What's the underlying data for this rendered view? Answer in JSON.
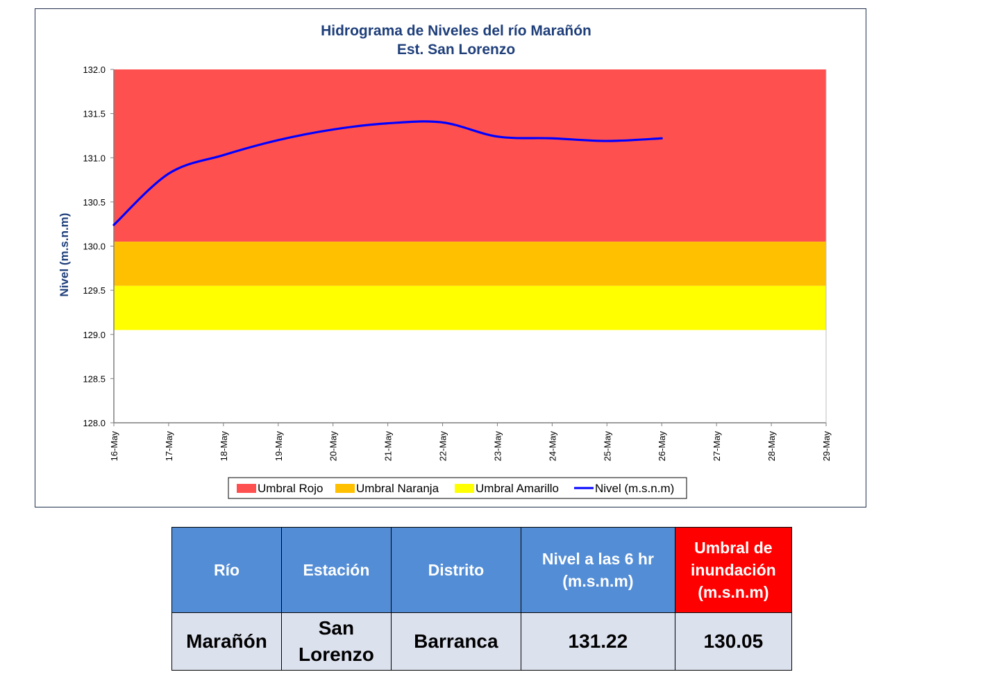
{
  "chart_data": {
    "type": "line",
    "title": "Hidrograma de Niveles del río Marañón",
    "subtitle": "Est. San Lorenzo",
    "ylabel": "Nivel (m.s.n.m)",
    "xlabel": "",
    "ylim": [
      128.0,
      132.0
    ],
    "yticks": [
      "128.0",
      "128.5",
      "129.0",
      "129.5",
      "130.0",
      "130.5",
      "131.0",
      "131.5",
      "132.0"
    ],
    "categories": [
      "16-May",
      "17-May",
      "18-May",
      "19-May",
      "20-May",
      "21-May",
      "22-May",
      "23-May",
      "24-May",
      "25-May",
      "26-May",
      "27-May",
      "28-May",
      "29-May"
    ],
    "bands": [
      {
        "name": "Umbral Rojo",
        "from": 130.05,
        "to": 132.0,
        "color": "#ff5050"
      },
      {
        "name": "Umbral Naranja",
        "from": 129.55,
        "to": 130.05,
        "color": "#ffc000"
      },
      {
        "name": "Umbral Amarillo",
        "from": 129.05,
        "to": 129.55,
        "color": "#ffff00"
      }
    ],
    "series": [
      {
        "name": "Nivel (m.s.n.m)",
        "color": "#0000ff",
        "x": [
          "16-May",
          "17-May",
          "18-May",
          "19-May",
          "20-May",
          "21-May",
          "22-May",
          "23-May",
          "24-May",
          "25-May",
          "26-May"
        ],
        "values": [
          130.24,
          130.82,
          131.03,
          131.2,
          131.32,
          131.39,
          131.4,
          131.24,
          131.22,
          131.19,
          131.22
        ]
      }
    ],
    "legend": [
      "Umbral Rojo",
      "Umbral Naranja",
      "Umbral Amarillo",
      "Nivel (m.s.n.m)"
    ],
    "legend_position": "bottom",
    "grid": false
  },
  "table": {
    "headers": [
      "Río",
      "Estación",
      "Distrito",
      "Nivel a las 6 hr (m.s.n.m)",
      "Umbral de inundación (m.s.n.m)"
    ],
    "header_colors": [
      "#538dd5",
      "#538dd5",
      "#538dd5",
      "#538dd5",
      "#ff0000"
    ],
    "row": [
      "Marañón",
      "San Lorenzo",
      "Barranca",
      "131.22",
      "130.05"
    ]
  }
}
